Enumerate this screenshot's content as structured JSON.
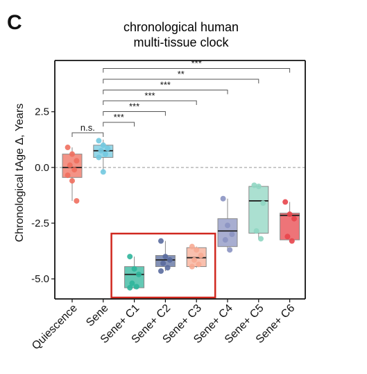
{
  "panel_letter": "C",
  "chart_data": {
    "type": "box",
    "title_lines": [
      "chronological human",
      "multi-tissue clock"
    ],
    "ylabel": "Chronological tAge Δ, Years",
    "xlabel": "",
    "ylim": [
      -5.9,
      4.8
    ],
    "yticks": [
      2.5,
      0.0,
      -2.5,
      -5.0
    ],
    "ytick_labels": [
      "2.5",
      "0.0",
      "-2.5",
      "-5.0"
    ],
    "reference_line": 0,
    "categories": [
      "Quiescence",
      "Sene",
      "Sene+ C1",
      "Sene+ C2",
      "Sene+ C3",
      "Sene+ C4",
      "Sene+ C5",
      "Sene+ C6"
    ],
    "boxes": [
      {
        "category": "Quiescence",
        "color": "#ef6f5e",
        "q1": -0.45,
        "median": 0.0,
        "q3": 0.6,
        "whisker_low": -1.5,
        "whisker_high": 0.9,
        "points": [
          0.9,
          0.6,
          0.3,
          0.1,
          -0.1,
          -0.35,
          -0.6,
          -1.5
        ]
      },
      {
        "category": "Sene",
        "color": "#72c9e0",
        "q1": 0.45,
        "median": 0.75,
        "q3": 1.0,
        "whisker_low": -0.2,
        "whisker_high": 1.25,
        "points": [
          1.2,
          1.0,
          0.85,
          0.75,
          0.6,
          0.45,
          -0.2
        ]
      },
      {
        "category": "Sene+ C1",
        "color": "#2fb59b",
        "q1": -5.4,
        "median": -4.8,
        "q3": -4.45,
        "whisker_low": -5.45,
        "whisker_high": -4.0,
        "points": [
          -4.0,
          -4.55,
          -4.8,
          -5.2,
          -5.35,
          -5.4
        ]
      },
      {
        "category": "Sene+ C2",
        "color": "#5a6c9e",
        "q1": -4.45,
        "median": -4.15,
        "q3": -3.95,
        "whisker_low": -4.65,
        "whisker_high": -3.3,
        "points": [
          -3.3,
          -4.0,
          -4.15,
          -4.3,
          -4.5,
          -4.65
        ]
      },
      {
        "category": "Sene+ C3",
        "color": "#f7ab93",
        "q1": -4.45,
        "median": -4.05,
        "q3": -3.6,
        "whisker_low": -4.5,
        "whisker_high": -3.55,
        "points": [
          -3.55,
          -3.7,
          -3.95,
          -4.15,
          -4.35,
          -4.45
        ]
      },
      {
        "category": "Sene+ C4",
        "color": "#8b93c2",
        "q1": -3.55,
        "median": -2.85,
        "q3": -2.3,
        "whisker_low": -3.75,
        "whisker_high": -1.4,
        "points": [
          -1.4,
          -2.6,
          -3.0,
          -3.25,
          -3.7
        ]
      },
      {
        "category": "Sene+ C5",
        "color": "#8fd6c2",
        "q1": -2.95,
        "median": -1.5,
        "q3": -0.85,
        "whisker_low": -3.2,
        "whisker_high": -0.8,
        "points": [
          -0.8,
          -0.85,
          -1.6,
          -2.85,
          -3.2
        ]
      },
      {
        "category": "Sene+ C6",
        "color": "#e8454b",
        "q1": -3.25,
        "median": -2.15,
        "q3": -2.05,
        "whisker_low": -3.35,
        "whisker_high": -1.55,
        "points": [
          -1.55,
          -2.1,
          -2.3,
          -3.1,
          -3.3
        ]
      }
    ],
    "comparisons": [
      {
        "from": "Quiescence",
        "to": "Sene",
        "label": "n.s."
      },
      {
        "from": "Sene",
        "to": "Sene+ C1",
        "label": "***"
      },
      {
        "from": "Sene",
        "to": "Sene+ C2",
        "label": "***"
      },
      {
        "from": "Sene",
        "to": "Sene+ C3",
        "label": "***"
      },
      {
        "from": "Sene",
        "to": "Sene+ C4",
        "label": "***"
      },
      {
        "from": "Sene",
        "to": "Sene+ C5",
        "label": "**"
      },
      {
        "from": "Sene",
        "to": "Sene+ C6",
        "label": "***"
      }
    ],
    "highlight": {
      "categories": [
        "Sene+ C1",
        "Sene+ C2",
        "Sene+ C3"
      ],
      "color": "#d0281f"
    },
    "grid": false,
    "legend": "none"
  }
}
